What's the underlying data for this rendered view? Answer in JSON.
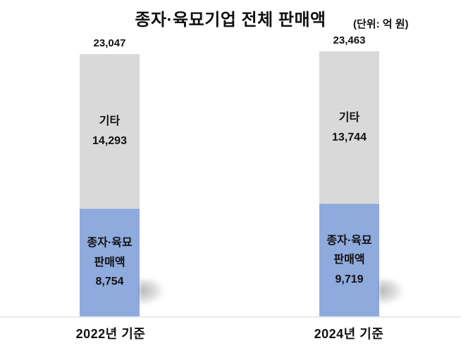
{
  "title": "종자·육묘기업 전체 판매액",
  "unit_label": "(단위: 억 원)",
  "colors": {
    "other_segment": "#d9d9d9",
    "seed_segment": "#8faadc",
    "text": "#111111",
    "axis_line": "#e7eaf0",
    "background": "#ffffff"
  },
  "chart_data": {
    "type": "bar",
    "stacked": true,
    "title": "종자·육묘기업 전체 판매액",
    "unit": "억 원",
    "categories": [
      "2022년 기준",
      "2024년 기준"
    ],
    "series": [
      {
        "name": "종자·육묘 판매액",
        "values": [
          8754,
          9719
        ],
        "color": "#8faadc"
      },
      {
        "name": "기타",
        "values": [
          14293,
          13744
        ],
        "color": "#d9d9d9"
      }
    ],
    "totals": [
      23047,
      23463
    ],
    "legend": "none",
    "grid": false,
    "value_labels": "inside-segments-and-total-above-bar"
  },
  "bars": [
    {
      "total_label": "23,047",
      "other_label": "기타",
      "other_value": "14,293",
      "seed_label_line1": "종자·육묘",
      "seed_label_line2": "판매액",
      "seed_value": "8,754",
      "axis_label": "2022년 기준"
    },
    {
      "total_label": "23,463",
      "other_label": "기타",
      "other_value": "13,744",
      "seed_label_line1": "종자·육묘",
      "seed_label_line2": "판매액",
      "seed_value": "9,719",
      "axis_label": "2024년 기준"
    }
  ]
}
